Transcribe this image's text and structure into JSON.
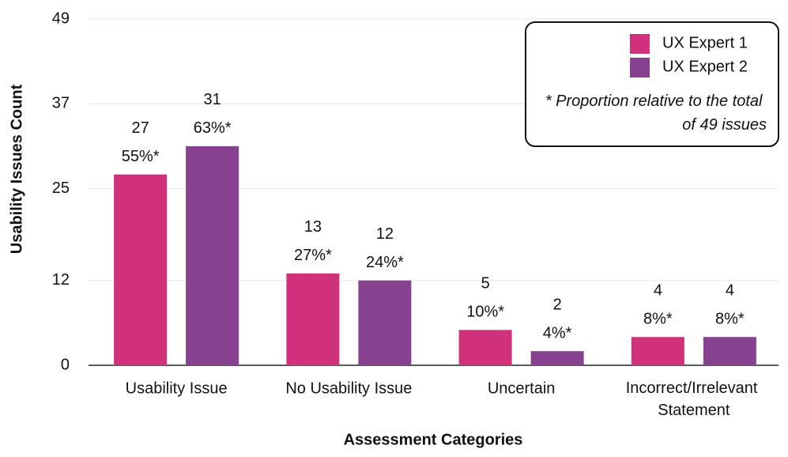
{
  "chart_data": {
    "type": "bar",
    "x_label": "Assessment Categories",
    "y_label": "Usability Issues Count",
    "categories": [
      "Usability Issue",
      "No Usability Issue",
      "Uncertain",
      "Incorrect/Irrelevant Statement"
    ],
    "series": [
      {
        "name": "UX Expert 1",
        "color": "#d0317a",
        "values": [
          27,
          13,
          5,
          4
        ],
        "percent_labels": [
          "55%*",
          "27%*",
          "10%*",
          "8%*"
        ]
      },
      {
        "name": "UX Expert 2",
        "color": "#86418f",
        "values": [
          31,
          12,
          2,
          4
        ],
        "percent_labels": [
          "63%*",
          "24%*",
          "4%*",
          "8%*"
        ]
      }
    ],
    "legend_note": "* Proportion relative to the total of 49 issues",
    "legend_position": "upper right",
    "ylim": [
      0,
      49
    ],
    "yticks": [
      0,
      12,
      25,
      37,
      49
    ],
    "grid": true
  }
}
